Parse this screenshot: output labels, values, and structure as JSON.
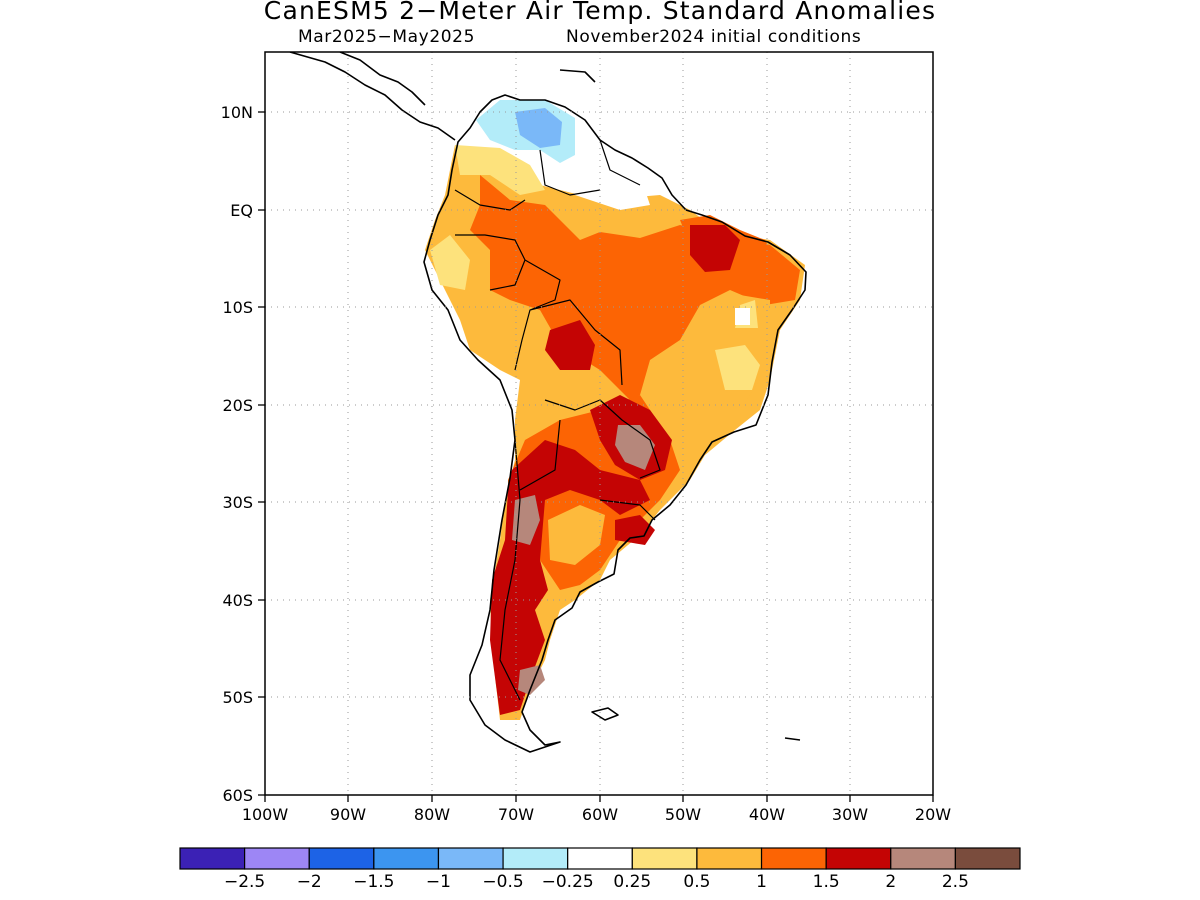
{
  "title": "CanESM5 2−Meter Air Temp. Standard Anomalies",
  "subtitle_left": "Mar2025−May2025",
  "subtitle_right": "November2024 initial conditions",
  "map": {
    "lon_range": [
      -100,
      -20
    ],
    "lat_range": [
      -60,
      15
    ],
    "lat_ticks": [
      {
        "value": 10,
        "label": "10N"
      },
      {
        "value": 0,
        "label": "EQ"
      },
      {
        "value": -10,
        "label": "10S"
      },
      {
        "value": -20,
        "label": "20S"
      },
      {
        "value": -30,
        "label": "30S"
      },
      {
        "value": -40,
        "label": "40S"
      },
      {
        "value": -50,
        "label": "50S"
      },
      {
        "value": -60,
        "label": "60S"
      }
    ],
    "lon_ticks": [
      {
        "value": -100,
        "label": "100W"
      },
      {
        "value": -90,
        "label": "90W"
      },
      {
        "value": -80,
        "label": "80W"
      },
      {
        "value": -70,
        "label": "70W"
      },
      {
        "value": -60,
        "label": "60W"
      },
      {
        "value": -50,
        "label": "50W"
      },
      {
        "value": -40,
        "label": "40W"
      },
      {
        "value": -30,
        "label": "30W"
      },
      {
        "value": -20,
        "label": "20W"
      }
    ],
    "grid": "dotted"
  },
  "colorbar": {
    "colors": [
      "#3b21b5",
      "#9d86f5",
      "#1d63e6",
      "#3c95f0",
      "#7ab8f8",
      "#b3ecf9",
      "#ffffff",
      "#fde27c",
      "#fdba3c",
      "#fc6404",
      "#c40404",
      "#b6877b",
      "#7a4c3d"
    ],
    "labels": [
      "−2.5",
      "−2",
      "−1.5",
      "−1",
      "−0.5",
      "−0.25",
      "0.25",
      "0.5",
      "1",
      "1.5",
      "2",
      "2.5"
    ]
  }
}
